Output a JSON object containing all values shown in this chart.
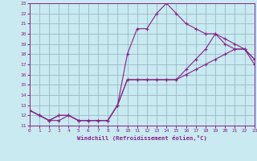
{
  "xlabel": "Windchill (Refroidissement éolien,°C)",
  "xlim": [
    0,
    23
  ],
  "ylim": [
    11,
    23
  ],
  "xticks": [
    0,
    1,
    2,
    3,
    4,
    5,
    6,
    7,
    8,
    9,
    10,
    11,
    12,
    13,
    14,
    15,
    16,
    17,
    18,
    19,
    20,
    21,
    22,
    23
  ],
  "yticks": [
    11,
    12,
    13,
    14,
    15,
    16,
    17,
    18,
    19,
    20,
    21,
    22,
    23
  ],
  "bg_color": "#c8eaf0",
  "line_color": "#882288",
  "grid_color": "#9ab8c8",
  "line1_x": [
    0,
    1,
    2,
    3,
    4,
    5,
    6,
    7,
    8,
    9,
    10,
    11,
    12,
    13,
    14,
    15,
    16,
    17,
    18,
    19,
    20,
    21,
    22,
    23
  ],
  "line1_y": [
    12.5,
    12.0,
    11.5,
    11.5,
    12.0,
    11.5,
    11.5,
    11.5,
    11.5,
    13.0,
    15.5,
    15.5,
    15.5,
    15.5,
    15.5,
    15.5,
    16.0,
    16.5,
    17.0,
    17.5,
    18.0,
    18.5,
    18.5,
    17.0
  ],
  "line2_x": [
    0,
    1,
    2,
    3,
    4,
    5,
    6,
    7,
    8,
    9,
    10,
    11,
    12,
    13,
    14,
    15,
    16,
    17,
    18,
    19,
    20,
    21,
    22,
    23
  ],
  "line2_y": [
    12.5,
    12.0,
    11.5,
    12.0,
    12.0,
    11.5,
    11.5,
    11.5,
    11.5,
    13.0,
    18.0,
    20.5,
    20.5,
    22.0,
    23.0,
    22.0,
    21.0,
    20.5,
    20.0,
    20.0,
    19.0,
    18.5,
    18.5,
    17.5
  ],
  "line3_x": [
    0,
    1,
    2,
    3,
    4,
    5,
    6,
    7,
    8,
    9,
    10,
    11,
    12,
    13,
    14,
    15,
    16,
    17,
    18,
    19,
    20,
    21,
    22,
    23
  ],
  "line3_y": [
    12.5,
    12.0,
    11.5,
    12.0,
    12.0,
    11.5,
    11.5,
    11.5,
    11.5,
    13.0,
    15.5,
    15.5,
    15.5,
    15.5,
    15.5,
    15.5,
    16.5,
    17.5,
    18.5,
    20.0,
    19.5,
    19.0,
    18.5,
    17.5
  ]
}
